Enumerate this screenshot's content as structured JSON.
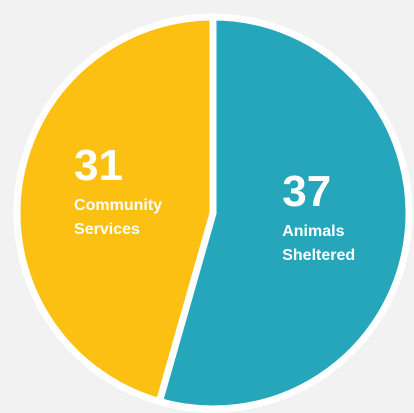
{
  "chart_data": {
    "type": "pie",
    "slices": [
      {
        "value": 37,
        "label_lines": [
          "Animals",
          "Sheltered"
        ],
        "color": "#25a6bb"
      },
      {
        "value": 31,
        "label_lines": [
          "Community",
          "Services"
        ],
        "color": "#fcc012"
      }
    ],
    "start_angle_deg": 0,
    "direction": "clockwise",
    "separator_color": "#ffffff",
    "background_color": "#f2f2f2"
  }
}
